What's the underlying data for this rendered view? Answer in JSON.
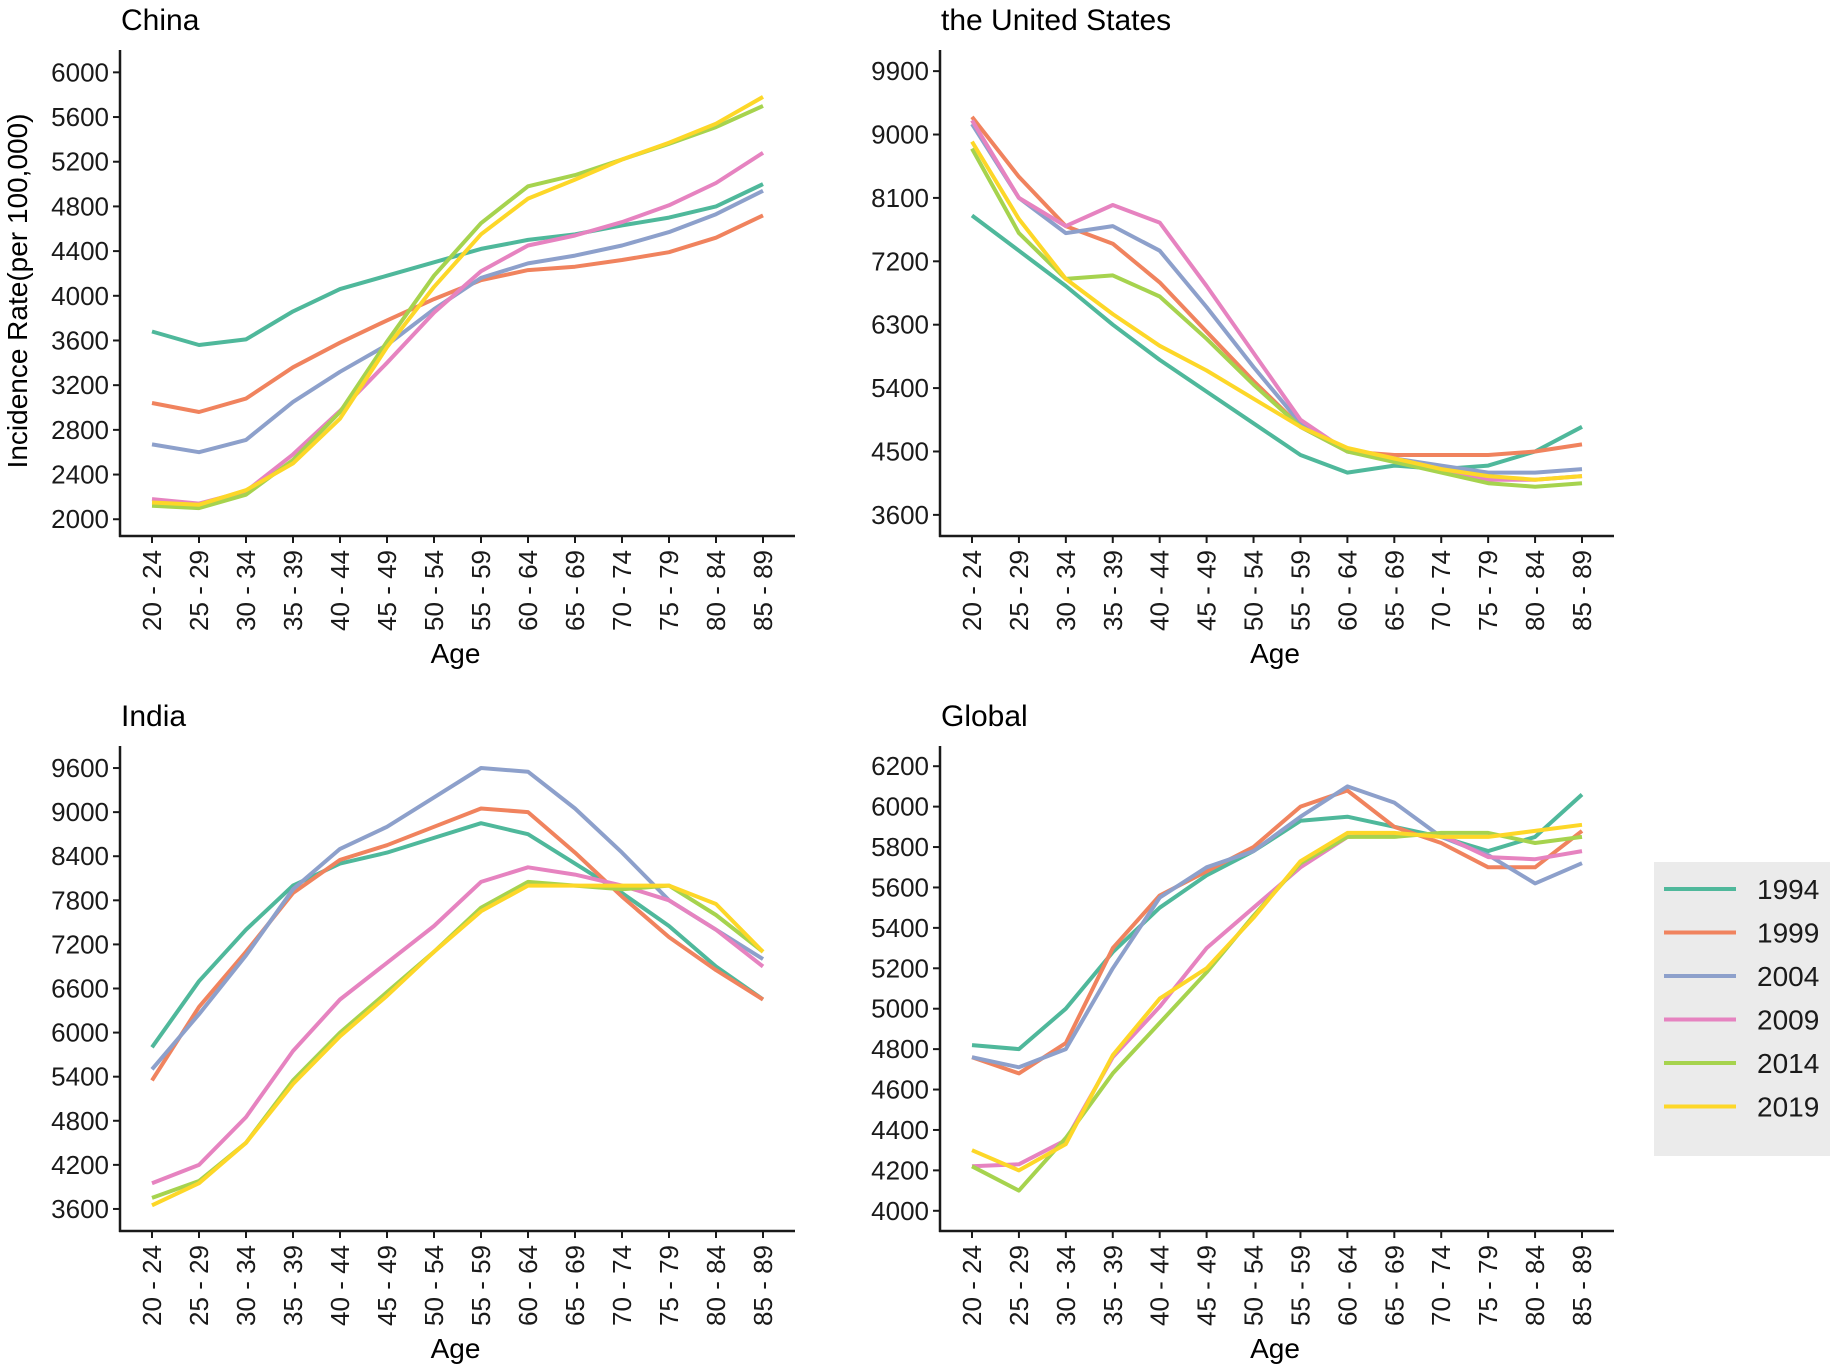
{
  "figure": {
    "y_axis_title": "Incidence Rate(per 100,000)",
    "x_axis_title": "Age"
  },
  "legend": {
    "items": [
      {
        "label": "1994",
        "color": "#4fb89b"
      },
      {
        "label": "1999",
        "color": "#f0835e"
      },
      {
        "label": "2004",
        "color": "#8da0cb"
      },
      {
        "label": "2009",
        "color": "#e683c0"
      },
      {
        "label": "2014",
        "color": "#a6d34e"
      },
      {
        "label": "2019",
        "color": "#fdd728"
      }
    ]
  },
  "chart_data": [
    {
      "type": "line",
      "title": "China",
      "xlabel": "Age",
      "ylabel": "Incidence Rate(per 100,000)",
      "categories": [
        "20 - 24",
        "25 - 29",
        "30 - 34",
        "35 - 39",
        "40 - 44",
        "45 - 49",
        "50 - 54",
        "55 - 59",
        "60 - 64",
        "65 - 69",
        "70 - 74",
        "75 - 79",
        "80 - 84",
        "85 - 89"
      ],
      "ylim": [
        1850,
        6200
      ],
      "yticks": [
        2000,
        2400,
        2800,
        3200,
        3600,
        4000,
        4400,
        4800,
        5200,
        5600,
        6000
      ],
      "series": [
        {
          "name": "1994",
          "values": [
            3680,
            3560,
            3610,
            3860,
            4060,
            4180,
            4300,
            4420,
            4500,
            4550,
            4630,
            4700,
            4800,
            5000
          ]
        },
        {
          "name": "1999",
          "values": [
            3040,
            2960,
            3080,
            3360,
            3580,
            3780,
            3970,
            4140,
            4230,
            4260,
            4320,
            4390,
            4520,
            4720
          ]
        },
        {
          "name": "2004",
          "values": [
            2670,
            2600,
            2710,
            3050,
            3320,
            3560,
            3880,
            4160,
            4290,
            4360,
            4450,
            4570,
            4730,
            4940
          ]
        },
        {
          "name": "2009",
          "values": [
            2180,
            2140,
            2250,
            2580,
            2970,
            3400,
            3850,
            4220,
            4450,
            4540,
            4660,
            4810,
            5010,
            5280
          ]
        },
        {
          "name": "2014",
          "values": [
            2120,
            2100,
            2220,
            2530,
            2960,
            3590,
            4180,
            4650,
            4980,
            5080,
            5220,
            5360,
            5510,
            5700
          ]
        },
        {
          "name": "2019",
          "values": [
            2150,
            2130,
            2260,
            2500,
            2900,
            3540,
            4080,
            4550,
            4870,
            5040,
            5220,
            5370,
            5540,
            5780
          ]
        }
      ]
    },
    {
      "type": "line",
      "title": "the United States",
      "xlabel": "Age",
      "ylabel": "Incidence Rate(per 100,000)",
      "categories": [
        "20 - 24",
        "25 - 29",
        "30 - 34",
        "35 - 39",
        "40 - 44",
        "45 - 49",
        "50 - 54",
        "55 - 59",
        "60 - 64",
        "65 - 69",
        "70 - 74",
        "75 - 79",
        "80 - 84",
        "85 - 89"
      ],
      "ylim": [
        3300,
        10200
      ],
      "yticks": [
        3600,
        4500,
        5400,
        6300,
        7200,
        8100,
        9000,
        9900
      ],
      "series": [
        {
          "name": "1994",
          "values": [
            7850,
            7350,
            6850,
            6300,
            5800,
            5350,
            4900,
            4450,
            4200,
            4300,
            4250,
            4300,
            4500,
            4850
          ]
        },
        {
          "name": "1999",
          "values": [
            9250,
            8400,
            7700,
            7450,
            6900,
            6200,
            5500,
            4850,
            4500,
            4450,
            4450,
            4450,
            4500,
            4600
          ]
        },
        {
          "name": "2004",
          "values": [
            9150,
            8100,
            7600,
            7700,
            7350,
            6550,
            5700,
            4900,
            4500,
            4400,
            4300,
            4200,
            4200,
            4250
          ]
        },
        {
          "name": "2009",
          "values": [
            9200,
            8100,
            7700,
            8000,
            7750,
            6850,
            5900,
            4950,
            4500,
            4400,
            4250,
            4100,
            4100,
            4150
          ]
        },
        {
          "name": "2014",
          "values": [
            8800,
            7600,
            6950,
            7000,
            6700,
            6100,
            5450,
            4850,
            4500,
            4350,
            4200,
            4050,
            4000,
            4050
          ]
        },
        {
          "name": "2019",
          "values": [
            8900,
            7800,
            6950,
            6450,
            6000,
            5650,
            5250,
            4850,
            4550,
            4400,
            4250,
            4150,
            4100,
            4150
          ]
        }
      ]
    },
    {
      "type": "line",
      "title": "India",
      "xlabel": "Age",
      "ylabel": "Incidence Rate(per 100,000)",
      "categories": [
        "20 - 24",
        "25 - 29",
        "30 - 34",
        "35 - 39",
        "40 - 44",
        "45 - 49",
        "50 - 54",
        "55 - 59",
        "60 - 64",
        "65 - 69",
        "70 - 74",
        "75 - 79",
        "80 - 84",
        "85 - 89"
      ],
      "ylim": [
        3300,
        9900
      ],
      "yticks": [
        3600,
        4200,
        4800,
        5400,
        6000,
        6600,
        7200,
        7800,
        8400,
        9000,
        9600
      ],
      "series": [
        {
          "name": "1994",
          "values": [
            5800,
            6700,
            7400,
            8000,
            8300,
            8450,
            8650,
            8850,
            8700,
            8300,
            7900,
            7450,
            6900,
            6450
          ]
        },
        {
          "name": "1999",
          "values": [
            5350,
            6350,
            7100,
            7900,
            8350,
            8550,
            8800,
            9050,
            9000,
            8450,
            7850,
            7300,
            6850,
            6450
          ]
        },
        {
          "name": "2004",
          "values": [
            5500,
            6250,
            7050,
            7950,
            8500,
            8800,
            9200,
            9600,
            9550,
            9050,
            8450,
            7800,
            7400,
            7000
          ]
        },
        {
          "name": "2009",
          "values": [
            3950,
            4200,
            4850,
            5750,
            6450,
            6950,
            7450,
            8050,
            8250,
            8150,
            8000,
            7800,
            7400,
            6900
          ]
        },
        {
          "name": "2014",
          "values": [
            3750,
            3980,
            4500,
            5350,
            6000,
            6550,
            7100,
            7700,
            8050,
            8000,
            7950,
            8000,
            7600,
            7100
          ]
        },
        {
          "name": "2019",
          "values": [
            3650,
            3950,
            4500,
            5300,
            5950,
            6500,
            7100,
            7650,
            8000,
            8000,
            8000,
            8000,
            7750,
            7100
          ]
        }
      ]
    },
    {
      "type": "line",
      "title": "Global",
      "xlabel": "Age",
      "ylabel": "Incidence Rate(per 100,000)",
      "categories": [
        "20 - 24",
        "25 - 29",
        "30 - 34",
        "35 - 39",
        "40 - 44",
        "45 - 49",
        "50 - 54",
        "55 - 59",
        "60 - 64",
        "65 - 69",
        "70 - 74",
        "75 - 79",
        "80 - 84",
        "85 - 89"
      ],
      "ylim": [
        3900,
        6300
      ],
      "yticks": [
        4000,
        4200,
        4400,
        4600,
        4800,
        5000,
        5200,
        5400,
        5600,
        5800,
        6000,
        6200
      ],
      "series": [
        {
          "name": "1994",
          "values": [
            4820,
            4800,
            5000,
            5280,
            5500,
            5660,
            5780,
            5930,
            5950,
            5900,
            5850,
            5780,
            5850,
            6060
          ]
        },
        {
          "name": "1999",
          "values": [
            4760,
            4680,
            4830,
            5300,
            5560,
            5680,
            5800,
            6000,
            6080,
            5900,
            5820,
            5700,
            5700,
            5880
          ]
        },
        {
          "name": "2004",
          "values": [
            4760,
            4710,
            4800,
            5200,
            5550,
            5700,
            5780,
            5950,
            6100,
            6020,
            5850,
            5760,
            5620,
            5720
          ]
        },
        {
          "name": "2009",
          "values": [
            4220,
            4230,
            4350,
            4760,
            5010,
            5300,
            5500,
            5700,
            5850,
            5860,
            5860,
            5750,
            5740,
            5780
          ]
        },
        {
          "name": "2014",
          "values": [
            4220,
            4100,
            4360,
            4680,
            4930,
            5180,
            5460,
            5720,
            5850,
            5850,
            5870,
            5870,
            5820,
            5850
          ]
        },
        {
          "name": "2019",
          "values": [
            4300,
            4200,
            4330,
            4770,
            5050,
            5200,
            5450,
            5730,
            5870,
            5870,
            5850,
            5850,
            5880,
            5910
          ]
        }
      ]
    }
  ]
}
